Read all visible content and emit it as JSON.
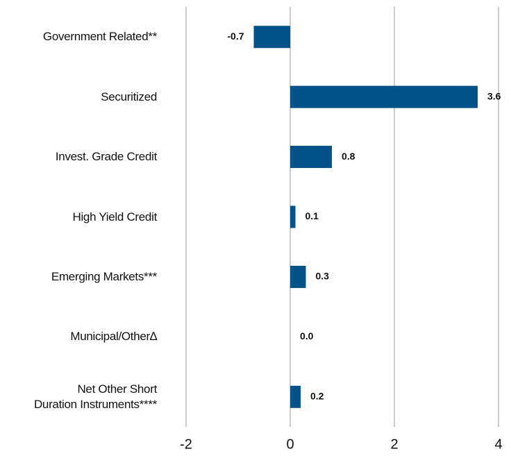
{
  "chart_data": {
    "type": "barh",
    "categories": [
      "Government Related**",
      "Securitized",
      "Invest. Grade Credit",
      "High Yield Credit",
      "Emerging Markets***",
      "Municipal/Other∆",
      "Net Other Short\nDuration Instruments****"
    ],
    "values": [
      -0.7,
      3.6,
      0.8,
      0.1,
      0.3,
      0.0,
      0.2
    ],
    "value_labels": [
      "-0.7",
      "3.6",
      "0.8",
      "0.1",
      "0.3",
      "0.0",
      "0.2"
    ],
    "color": "#005288",
    "xlim": [
      -2,
      4
    ],
    "xticks": [
      -2,
      0,
      2,
      4
    ],
    "grid": true
  }
}
